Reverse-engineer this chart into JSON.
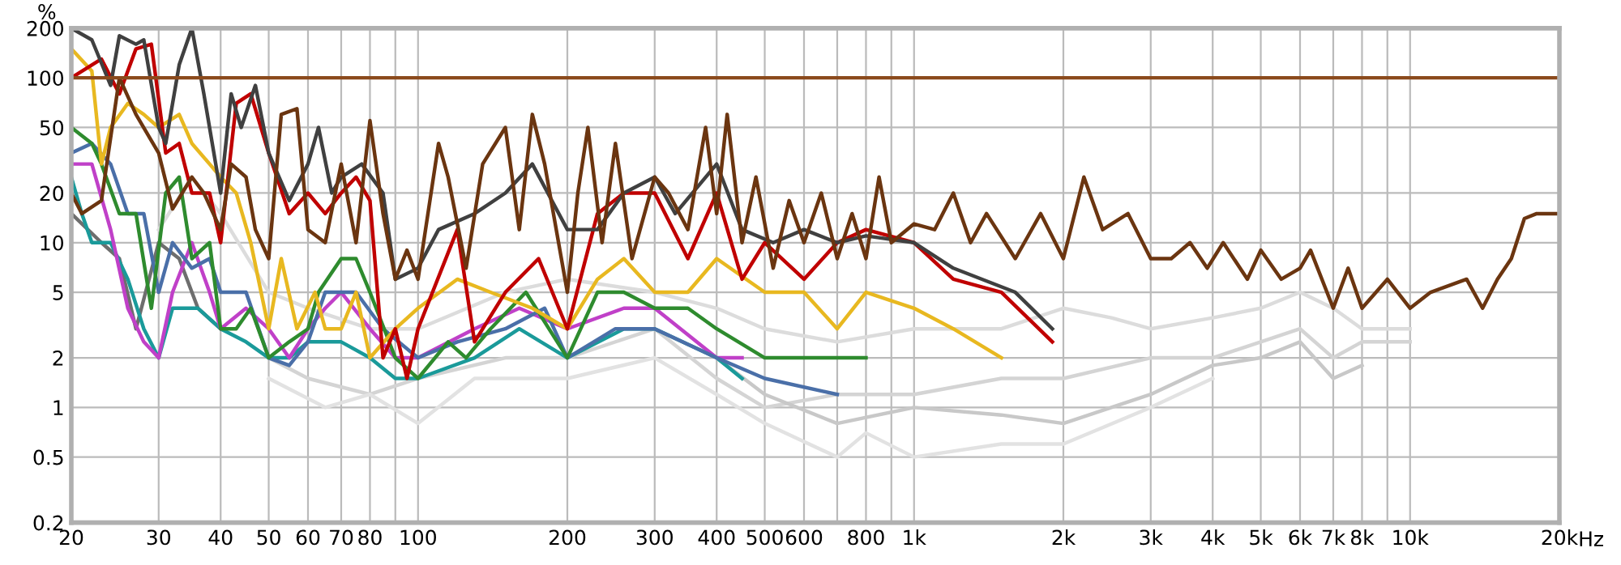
{
  "chart_data": {
    "type": "line",
    "ylabel": "%",
    "log": "xy",
    "grid": true,
    "legend": false,
    "marker": "none",
    "line_style": "solid",
    "xlim": [
      20,
      20000
    ],
    "ylim": [
      0.2,
      200
    ],
    "xticks": [
      20,
      30,
      40,
      50,
      60,
      70,
      80,
      {
        "value": 90,
        "label": null
      },
      {
        "value": 100,
        "label": "100"
      },
      200,
      300,
      400,
      500,
      600,
      {
        "value": 700,
        "label": null
      },
      800,
      {
        "value": 900,
        "label": null
      },
      {
        "value": 1000,
        "label": "1k"
      },
      {
        "value": 2000,
        "label": "2k"
      },
      {
        "value": 3000,
        "label": "3k"
      },
      {
        "value": 4000,
        "label": "4k"
      },
      {
        "value": 5000,
        "label": "5k"
      },
      {
        "value": 6000,
        "label": "6k"
      },
      {
        "value": 7000,
        "label": "7k"
      },
      {
        "value": 8000,
        "label": "8k"
      },
      {
        "value": 9000,
        "label": null
      },
      {
        "value": 10000,
        "label": "10k"
      },
      {
        "value": 20000,
        "label": "20k"
      }
    ],
    "xlabel": "Hz",
    "yticks": [
      0.2,
      0.5,
      1,
      2,
      5,
      10,
      20,
      50,
      100,
      200
    ],
    "ref_lines": [
      {
        "axis": "y",
        "value": 100,
        "color": "#8b4a1c"
      }
    ],
    "series": [
      {
        "color": "#dcdcdc",
        "x": [
          30,
          35,
          40,
          50,
          60,
          80,
          100,
          150,
          200,
          300,
          400,
          500,
          700,
          1000,
          1500,
          2000,
          2500,
          3000,
          4000,
          5000,
          6000,
          7000,
          8000,
          10000
        ],
        "values": [
          12,
          25,
          15,
          5,
          4,
          3,
          3,
          5,
          6,
          5,
          4,
          3,
          2.5,
          3,
          3,
          4,
          3.5,
          3,
          3.5,
          4,
          5,
          4,
          3,
          3
        ]
      },
      {
        "color": "#d4d4d4",
        "x": [
          50,
          60,
          80,
          100,
          150,
          200,
          300,
          400,
          500,
          700,
          1000,
          1500,
          2000,
          3000,
          4000,
          5000,
          6000,
          7000,
          8000,
          10000
        ],
        "values": [
          2,
          1.5,
          1.2,
          1.5,
          2,
          2,
          3,
          1.5,
          1,
          1.2,
          1.2,
          1.5,
          1.5,
          2,
          2,
          2.5,
          3,
          2,
          2.5,
          2.5
        ]
      },
      {
        "color": "#e2e2e2",
        "x": [
          50,
          65,
          80,
          100,
          130,
          200,
          300,
          400,
          500,
          700,
          800,
          1000,
          1500,
          2000,
          3000,
          4000
        ],
        "values": [
          1.5,
          1,
          1.2,
          0.8,
          1.5,
          1.5,
          2,
          1.2,
          0.8,
          0.5,
          0.7,
          0.5,
          0.6,
          0.6,
          1,
          1.5
        ]
      },
      {
        "color": "#c8c8c8",
        "x": [
          400,
          500,
          700,
          1000,
          1500,
          2000,
          3000,
          4000,
          5000,
          6000,
          7000,
          8000
        ],
        "values": [
          2,
          1.2,
          0.8,
          1,
          0.9,
          0.8,
          1.2,
          1.8,
          2,
          2.5,
          1.5,
          1.8
        ]
      },
      {
        "color": "#6e6e6e",
        "x": [
          20,
          23,
          25,
          27,
          30,
          33,
          36,
          40
        ],
        "values": [
          15,
          10,
          8,
          3,
          10,
          8,
          4,
          3
        ]
      },
      {
        "color": "#1a9a9a",
        "x": [
          20,
          21,
          22,
          24,
          26,
          28,
          30,
          32,
          36,
          40,
          45,
          50,
          55,
          60,
          70,
          80,
          90,
          100,
          130,
          160,
          200,
          260,
          300,
          400,
          450
        ],
        "values": [
          25,
          15,
          10,
          10,
          6,
          3,
          2,
          4,
          4,
          3,
          2.5,
          2,
          2,
          2.5,
          2.5,
          2,
          1.5,
          1.5,
          2,
          3,
          2,
          3,
          3,
          2,
          1.5
        ]
      },
      {
        "color": "#c040c8",
        "x": [
          20,
          22,
          24,
          26,
          28,
          30,
          32,
          35,
          38,
          40,
          45,
          50,
          55,
          60,
          65,
          70,
          80,
          90,
          100,
          130,
          160,
          200,
          260,
          300,
          400,
          450
        ],
        "values": [
          30,
          30,
          12,
          4,
          2.5,
          2,
          5,
          10,
          5,
          3,
          4,
          3,
          2,
          3,
          4,
          5,
          3,
          2,
          2,
          3,
          4,
          3,
          4,
          4,
          2,
          2
        ]
      },
      {
        "color": "#4a6fa8",
        "x": [
          20,
          22,
          24,
          26,
          28,
          30,
          32,
          35,
          38,
          40,
          45,
          50,
          55,
          60,
          65,
          75,
          85,
          100,
          120,
          150,
          180,
          200,
          250,
          300,
          400,
          500,
          700
        ],
        "values": [
          35,
          40,
          30,
          15,
          15,
          5,
          10,
          7,
          8,
          5,
          5,
          2,
          1.8,
          2.5,
          5,
          5,
          3,
          2,
          2.5,
          3,
          4,
          2,
          3,
          3,
          2,
          1.5,
          1.2
        ]
      },
      {
        "color": "#2e8b2e",
        "x": [
          20,
          22,
          23,
          25,
          27,
          29,
          31,
          33,
          35,
          38,
          40,
          43,
          46,
          50,
          55,
          60,
          63,
          70,
          75,
          80,
          90,
          100,
          115,
          125,
          140,
          165,
          200,
          230,
          260,
          300,
          350,
          400,
          500,
          600,
          800
        ],
        "values": [
          50,
          40,
          30,
          15,
          15,
          4,
          20,
          25,
          8,
          10,
          3,
          3,
          4,
          2,
          2.5,
          3,
          5,
          8,
          8,
          5,
          2,
          1.5,
          2.5,
          2,
          3,
          5,
          2,
          5,
          5,
          4,
          4,
          3,
          2,
          2,
          2
        ]
      },
      {
        "color": "#e8b820",
        "x": [
          20,
          22,
          23,
          24,
          26,
          28,
          30,
          33,
          35,
          38,
          40,
          43,
          46,
          50,
          53,
          57,
          62,
          65,
          70,
          75,
          80,
          90,
          100,
          120,
          140,
          170,
          200,
          230,
          260,
          300,
          350,
          400,
          500,
          600,
          700,
          800,
          1000,
          1200,
          1500
        ],
        "values": [
          150,
          110,
          30,
          50,
          70,
          60,
          50,
          60,
          40,
          30,
          25,
          20,
          10,
          3,
          8,
          3,
          5,
          3,
          3,
          5,
          2,
          3,
          4,
          6,
          5,
          4,
          3,
          6,
          8,
          5,
          5,
          8,
          5,
          5,
          3,
          5,
          4,
          3,
          2
        ]
      },
      {
        "color": "#c00000",
        "x": [
          20,
          23,
          25,
          27,
          29,
          31,
          33,
          35,
          38,
          40,
          43,
          46,
          50,
          55,
          60,
          65,
          70,
          75,
          80,
          85,
          90,
          95,
          100,
          120,
          130,
          150,
          175,
          200,
          230,
          260,
          300,
          350,
          400,
          450,
          500,
          600,
          700,
          800,
          1000,
          1200,
          1500,
          1900
        ],
        "values": [
          100,
          130,
          80,
          150,
          160,
          35,
          40,
          20,
          20,
          10,
          70,
          80,
          35,
          15,
          20,
          15,
          20,
          25,
          18,
          2,
          3,
          1.5,
          3,
          12,
          2.5,
          5,
          8,
          3,
          15,
          20,
          20,
          8,
          20,
          6,
          10,
          6,
          10,
          12,
          10,
          6,
          5,
          2.5
        ]
      },
      {
        "color": "#404040",
        "x": [
          20,
          22,
          24,
          25,
          27,
          28,
          30,
          31,
          33,
          35,
          37,
          40,
          42,
          44,
          47,
          50,
          55,
          60,
          63,
          67,
          70,
          77,
          85,
          90,
          100,
          110,
          130,
          150,
          170,
          200,
          230,
          260,
          300,
          330,
          400,
          450,
          520,
          600,
          700,
          800,
          1000,
          1200,
          1600,
          1900
        ],
        "values": [
          200,
          170,
          90,
          180,
          160,
          170,
          50,
          40,
          120,
          200,
          80,
          20,
          80,
          50,
          90,
          35,
          18,
          30,
          50,
          20,
          25,
          30,
          20,
          6,
          7,
          12,
          15,
          20,
          30,
          12,
          12,
          20,
          25,
          15,
          30,
          12,
          10,
          12,
          10,
          11,
          10,
          7,
          5,
          3
        ]
      },
      {
        "color": "#6b3510",
        "x": [
          20,
          21,
          23,
          25,
          27,
          30,
          32,
          35,
          37,
          40,
          42,
          45,
          47,
          50,
          53,
          57,
          60,
          65,
          70,
          75,
          80,
          85,
          90,
          95,
          100,
          110,
          115,
          125,
          135,
          150,
          160,
          170,
          180,
          200,
          210,
          220,
          235,
          250,
          270,
          300,
          320,
          350,
          380,
          400,
          420,
          450,
          480,
          520,
          560,
          600,
          650,
          700,
          750,
          800,
          850,
          900,
          1000,
          1100,
          1200,
          1300,
          1400,
          1600,
          1800,
          2000,
          2200,
          2400,
          2700,
          3000,
          3300,
          3600,
          3900,
          4200,
          4700,
          5000,
          5500,
          6000,
          6300,
          7000,
          7500,
          8000,
          9000,
          10000,
          11000,
          13000,
          14000,
          15000,
          16000,
          17000,
          18000,
          20000
        ],
        "values": [
          20,
          15,
          18,
          100,
          60,
          35,
          16,
          25,
          20,
          12,
          30,
          25,
          12,
          8,
          60,
          65,
          12,
          10,
          30,
          10,
          55,
          15,
          6,
          9,
          6,
          40,
          25,
          7,
          30,
          50,
          12,
          60,
          30,
          5,
          20,
          50,
          10,
          40,
          8,
          25,
          20,
          12,
          50,
          15,
          60,
          10,
          25,
          7,
          18,
          10,
          20,
          8,
          15,
          8,
          25,
          10,
          13,
          12,
          20,
          10,
          15,
          8,
          15,
          8,
          25,
          12,
          15,
          8,
          8,
          10,
          7,
          10,
          6,
          9,
          6,
          7,
          9,
          4,
          7,
          4,
          6,
          4,
          5,
          6,
          4,
          6,
          8,
          14,
          15,
          15
        ]
      }
    ]
  }
}
